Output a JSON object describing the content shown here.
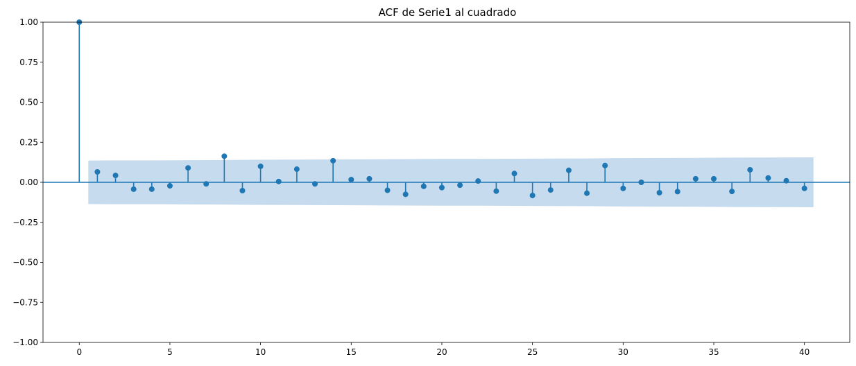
{
  "chart_data": {
    "type": "scatter",
    "subtype": "stem",
    "title": "ACF de Serie1 al cuadrado",
    "xlabel": "",
    "ylabel": "",
    "xlim": [
      -2,
      42.5
    ],
    "ylim": [
      -1.0,
      1.0
    ],
    "xticks": [
      0,
      5,
      10,
      15,
      20,
      25,
      30,
      35,
      40
    ],
    "yticks": [
      -1.0,
      -0.75,
      -0.5,
      -0.25,
      0.0,
      0.25,
      0.5,
      0.75,
      1.0
    ],
    "ytick_labels": [
      "−1.00",
      "−0.75",
      "−0.50",
      "−0.25",
      "0.00",
      "0.25",
      "0.50",
      "0.75",
      "1.00"
    ],
    "grid": false,
    "x": [
      0,
      1,
      2,
      3,
      4,
      5,
      6,
      7,
      8,
      9,
      10,
      11,
      12,
      13,
      14,
      15,
      16,
      17,
      18,
      19,
      20,
      21,
      22,
      23,
      24,
      25,
      26,
      27,
      28,
      29,
      30,
      31,
      32,
      33,
      34,
      35,
      36,
      37,
      38,
      39,
      40
    ],
    "values": [
      1.0,
      0.065,
      0.043,
      -0.043,
      -0.043,
      -0.022,
      0.09,
      -0.01,
      0.163,
      -0.052,
      0.1,
      0.005,
      0.082,
      -0.01,
      0.135,
      0.017,
      0.022,
      -0.05,
      -0.075,
      -0.025,
      -0.033,
      -0.018,
      0.008,
      -0.055,
      0.055,
      -0.082,
      -0.048,
      0.075,
      -0.068,
      0.105,
      -0.038,
      0.0,
      -0.065,
      -0.058,
      0.022,
      0.022,
      -0.057,
      0.078,
      0.027,
      0.01,
      -0.038
    ],
    "confidence_band": {
      "x": [
        0.5,
        2,
        4,
        6,
        8,
        10,
        12,
        14,
        16,
        18,
        20,
        22,
        24,
        26,
        28,
        30,
        32,
        34,
        36,
        38,
        40.5
      ],
      "upper": [
        0.136,
        0.137,
        0.137,
        0.138,
        0.139,
        0.141,
        0.142,
        0.143,
        0.144,
        0.145,
        0.146,
        0.146,
        0.147,
        0.148,
        0.149,
        0.151,
        0.152,
        0.153,
        0.154,
        0.155,
        0.156
      ]
    },
    "colors": {
      "series": "#1f77b4",
      "band": "#c6dbee"
    }
  }
}
